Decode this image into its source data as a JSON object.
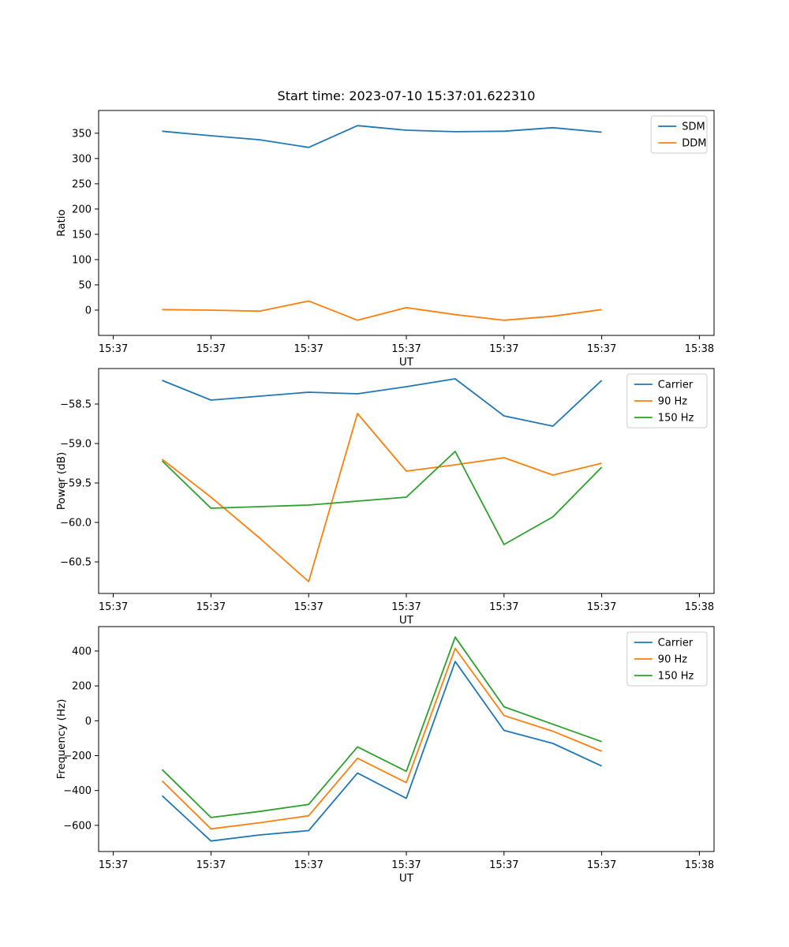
{
  "title": "Start time: 2023-07-10 15:37:01.622310",
  "xlabel": "UT",
  "colors": {
    "blue_series": "#1f77b4",
    "orange_series": "#ff7f0e",
    "green_series": "#2ca02c",
    "axes": "#000000",
    "legend_border": "#cccccc",
    "background": "#ffffff"
  },
  "chart_data": [
    {
      "type": "line",
      "name": "ratio",
      "title": "Start time: 2023-07-10 15:37:01.622310",
      "xlabel": "UT",
      "ylabel": "Ratio",
      "x_note": "seconds after 15:37:00, ticks every 10 s",
      "x": [
        5,
        10,
        15,
        20,
        25,
        30,
        35,
        40,
        45,
        50
      ],
      "xlim": [
        -1.5,
        61.5
      ],
      "xticks": [
        0,
        10,
        20,
        30,
        40,
        50,
        60
      ],
      "xtick_labels": [
        "15:37",
        "15:37",
        "15:37",
        "15:37",
        "15:37",
        "15:37",
        "15:38"
      ],
      "ylim": [
        -50,
        395
      ],
      "yticks": [
        350,
        300,
        250,
        200,
        150,
        100,
        50,
        0
      ],
      "ytick_labels": [
        "350",
        "300",
        "250",
        "200",
        "150",
        "100",
        "50",
        "0"
      ],
      "grid": false,
      "legend_position": "upper right",
      "series": [
        {
          "name": "SDM",
          "color": "#1f77b4",
          "values": [
            354,
            345,
            337,
            322,
            365,
            356,
            353,
            354,
            361,
            352
          ]
        },
        {
          "name": "DDM",
          "color": "#ff7f0e",
          "values": [
            1,
            0,
            -2,
            18,
            -20,
            5,
            -9,
            -20,
            -12,
            1
          ]
        }
      ]
    },
    {
      "type": "line",
      "name": "power",
      "xlabel": "UT",
      "ylabel": "Power (dB)",
      "x": [
        5,
        10,
        15,
        20,
        25,
        30,
        35,
        40,
        45,
        50
      ],
      "xlim": [
        -1.5,
        61.5
      ],
      "xticks": [
        0,
        10,
        20,
        30,
        40,
        50,
        60
      ],
      "xtick_labels": [
        "15:37",
        "15:37",
        "15:37",
        "15:37",
        "15:37",
        "15:37",
        "15:38"
      ],
      "ylim": [
        -60.9,
        -58.05
      ],
      "yticks": [
        -58.5,
        -59.0,
        -59.5,
        -60.0,
        -60.5
      ],
      "ytick_labels": [
        "−58.5",
        "−59.0",
        "−59.5",
        "−60.0",
        "−60.5"
      ],
      "grid": false,
      "legend_position": "upper right",
      "series": [
        {
          "name": "Carrier",
          "color": "#1f77b4",
          "values": [
            -58.2,
            -58.45,
            -58.4,
            -58.35,
            -58.37,
            -58.28,
            -58.18,
            -58.65,
            -58.78,
            -58.2
          ]
        },
        {
          "name": "90 Hz",
          "color": "#ff7f0e",
          "values": [
            -59.2,
            -59.68,
            -60.2,
            -60.75,
            -58.62,
            -59.35,
            -59.27,
            -59.18,
            -59.4,
            -59.25
          ]
        },
        {
          "name": "150 Hz",
          "color": "#2ca02c",
          "values": [
            -59.22,
            -59.82,
            -59.8,
            -59.78,
            -59.73,
            -59.68,
            -59.1,
            -60.28,
            -59.93,
            -59.3
          ]
        }
      ]
    },
    {
      "type": "line",
      "name": "frequency",
      "xlabel": "UT",
      "ylabel": "Frequency (Hz)",
      "x": [
        5,
        10,
        15,
        20,
        25,
        30,
        35,
        40,
        45,
        50
      ],
      "xlim": [
        -1.5,
        61.5
      ],
      "xticks": [
        0,
        10,
        20,
        30,
        40,
        50,
        60
      ],
      "xtick_labels": [
        "15:37",
        "15:37",
        "15:37",
        "15:37",
        "15:37",
        "15:37",
        "15:38"
      ],
      "ylim": [
        -750,
        540
      ],
      "yticks": [
        400,
        200,
        0,
        -200,
        -400,
        -600
      ],
      "ytick_labels": [
        "400",
        "200",
        "0",
        "−200",
        "−400",
        "−600"
      ],
      "grid": false,
      "legend_position": "upper right",
      "series": [
        {
          "name": "Carrier",
          "color": "#1f77b4",
          "values": [
            -430,
            -690,
            -655,
            -630,
            -300,
            -445,
            340,
            -55,
            -130,
            -260
          ]
        },
        {
          "name": "90 Hz",
          "color": "#ff7f0e",
          "values": [
            -345,
            -620,
            -585,
            -545,
            -215,
            -355,
            415,
            30,
            -60,
            -175
          ]
        },
        {
          "name": "150 Hz",
          "color": "#2ca02c",
          "values": [
            -280,
            -555,
            -520,
            -480,
            -150,
            -290,
            480,
            80,
            -20,
            -120
          ]
        }
      ]
    }
  ]
}
